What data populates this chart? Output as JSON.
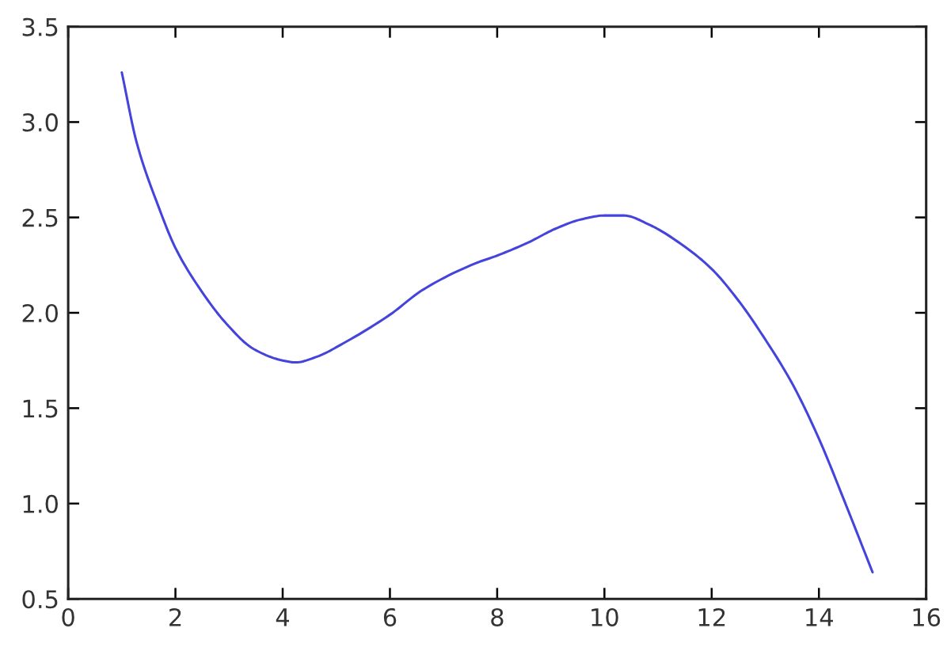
{
  "chart_data": {
    "type": "line",
    "series": [
      {
        "color": "#4444dd",
        "x": [
          1.0,
          1.28,
          1.68,
          2.0,
          2.47,
          2.96,
          3.46,
          4.0,
          4.24,
          4.64,
          5.13,
          6.0,
          6.61,
          7.6,
          8.0,
          8.59,
          9.08,
          9.57,
          10.0,
          10.36,
          10.85,
          11.53,
          12.0,
          12.51,
          13.0,
          13.5,
          14.0,
          14.48,
          15.0
        ],
        "values": [
          3.26,
          2.89,
          2.56,
          2.34,
          2.12,
          1.94,
          1.81,
          1.75,
          1.74,
          1.77,
          1.84,
          1.99,
          2.12,
          2.26,
          2.3,
          2.37,
          2.44,
          2.49,
          2.51,
          2.51,
          2.46,
          2.34,
          2.23,
          2.06,
          1.86,
          1.63,
          1.34,
          1.01,
          0.64
        ]
      }
    ],
    "xlim": [
      0,
      16
    ],
    "xticks": [
      0,
      2,
      4,
      6,
      8,
      10,
      12,
      14,
      16
    ],
    "ylim": [
      0.5,
      3.5
    ],
    "yticks": [
      0.5,
      {
        "value": 1,
        "label": "1.0"
      },
      1.5,
      {
        "value": 2,
        "label": "2.0"
      },
      2.5,
      {
        "value": 3,
        "label": "3.0"
      },
      3.5
    ],
    "marker": "none",
    "line_style": "solid"
  }
}
